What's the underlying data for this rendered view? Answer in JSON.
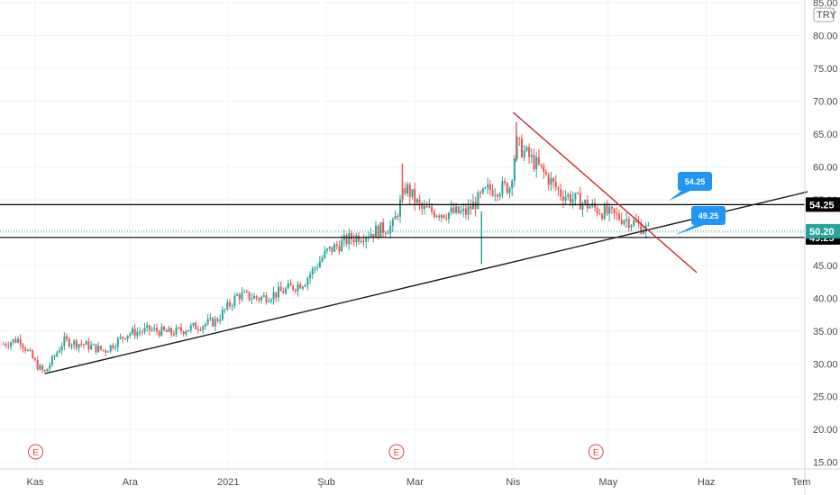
{
  "chart_data": {
    "type": "candlestick",
    "currency": "TRY",
    "ylim": [
      14,
      85
    ],
    "y_ticks": [
      15,
      20,
      25,
      30,
      35,
      40,
      45,
      50,
      55,
      60,
      65,
      70,
      75,
      80,
      85
    ],
    "y_tick_labels": [
      "15.00",
      "20.00",
      "25.00",
      "30.00",
      "35.00",
      "40.00",
      "45.00",
      "50.00",
      "55.00",
      "60.00",
      "65.00",
      "70.00",
      "75.00",
      "80.00",
      "85.00"
    ],
    "x_ticks": [
      {
        "label": "Kas",
        "date": "2020-11-01"
      },
      {
        "label": "Ara",
        "date": "2020-12-01"
      },
      {
        "label": "2021",
        "date": "2021-01-01"
      },
      {
        "label": "Şub",
        "date": "2021-02-01"
      },
      {
        "label": "Mar",
        "date": "2021-03-01"
      },
      {
        "label": "Nis",
        "date": "2021-04-01"
      },
      {
        "label": "May",
        "date": "2021-05-01"
      },
      {
        "label": "Haz",
        "date": "2021-06-01"
      },
      {
        "label": "Tem",
        "date": "2021-07-01"
      }
    ],
    "price_path": [
      [
        "2020-10-22",
        33.0
      ],
      [
        "2020-10-27",
        33.8
      ],
      [
        "2020-11-02",
        29.5
      ],
      [
        "2020-11-04",
        28.6
      ],
      [
        "2020-11-10",
        33.5
      ],
      [
        "2020-11-16",
        33.0
      ],
      [
        "2020-11-23",
        32.0
      ],
      [
        "2020-11-30",
        34.6
      ],
      [
        "2020-12-07",
        35.2
      ],
      [
        "2020-12-14",
        34.7
      ],
      [
        "2020-12-21",
        35.6
      ],
      [
        "2020-12-28",
        36.5
      ],
      [
        "2021-01-04",
        40.5
      ],
      [
        "2021-01-11",
        40.0
      ],
      [
        "2021-01-18",
        41.0
      ],
      [
        "2021-01-25",
        42.5
      ],
      [
        "2021-02-01",
        47.0
      ],
      [
        "2021-02-08",
        49.0
      ],
      [
        "2021-02-15",
        50.0
      ],
      [
        "2021-02-22",
        51.0
      ],
      [
        "2021-02-26",
        57.0
      ],
      [
        "2021-03-03",
        53.5
      ],
      [
        "2021-03-10",
        53.0
      ],
      [
        "2021-03-17",
        53.0
      ],
      [
        "2021-03-24",
        56.5
      ],
      [
        "2021-03-31",
        57.0
      ],
      [
        "2021-04-02",
        63.5
      ],
      [
        "2021-04-09",
        60.0
      ],
      [
        "2021-04-16",
        56.0
      ],
      [
        "2021-04-23",
        54.5
      ],
      [
        "2021-04-30",
        53.0
      ],
      [
        "2021-05-07",
        52.0
      ],
      [
        "2021-05-14",
        50.2
      ]
    ],
    "spikes": [
      {
        "date": "2021-02-25",
        "high": 60.5
      },
      {
        "date": "2021-03-22",
        "low": 45.2
      },
      {
        "date": "2021-04-02",
        "high": 66.8
      }
    ],
    "last_price": 50.2,
    "levels": [
      54.25,
      49.25
    ],
    "level_labels": [
      "54.25",
      "49.25"
    ],
    "last_price_label": "50.20",
    "trendlines": [
      {
        "color": "#1a1a1a",
        "from": [
          "2020-11-04",
          28.5
        ],
        "to": [
          "2021-07-03",
          56.2
        ]
      },
      {
        "color": "#cc2b2b",
        "from": [
          "2021-04-01",
          68.3
        ],
        "to": [
          "2021-05-29",
          43.9
        ]
      }
    ],
    "callouts": [
      {
        "text": "54.25",
        "anchor": [
          "2021-05-20",
          54.8
        ]
      },
      {
        "text": "49.25",
        "anchor": [
          "2021-05-22",
          49.6
        ]
      }
    ],
    "events": [
      {
        "label": "E",
        "date": "2020-11-04"
      },
      {
        "label": "E",
        "date": "2021-02-26"
      },
      {
        "label": "E",
        "date": "2021-04-30"
      }
    ],
    "colors": {
      "up": "#26a69a",
      "down": "#ef5350",
      "level": "#000000",
      "last_price": "#26a69a",
      "callout": "#2196f3",
      "event": "#e0474c"
    }
  }
}
